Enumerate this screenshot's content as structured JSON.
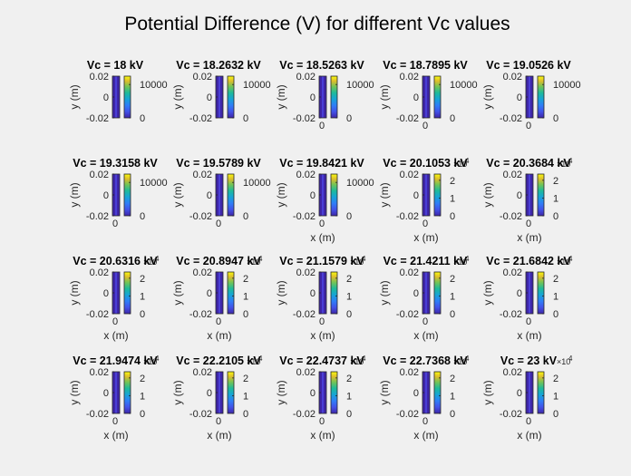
{
  "figure": {
    "title": "Potential Difference (V) for different Vc values",
    "background": "#f0f0f0",
    "axes_color": "#262626",
    "colormap": "parula"
  },
  "chart_data": {
    "type": "heatmap",
    "title": "Potential Difference (V) for different Vc values",
    "layout": "4 rows x 5 columns",
    "subplot_title_prefix": "Vc = ",
    "subplot_title_suffix": " kV",
    "vc_values": [
      "18",
      "18.2632",
      "18.5263",
      "18.7895",
      "19.0526",
      "19.3158",
      "19.5789",
      "19.8421",
      "20.1053",
      "20.3684",
      "20.6316",
      "20.8947",
      "21.1579",
      "21.4211",
      "21.6842",
      "21.9474",
      "22.2105",
      "22.4737",
      "22.7368",
      "23"
    ],
    "ylabel": "y (m)",
    "xlabel": "x (m)",
    "ytick_labels": [
      "0.02",
      "0",
      "-0.02"
    ],
    "ylim": [
      -0.02,
      0.02
    ],
    "xtick_label": "0",
    "colorbar_ticks_small": [
      "10000",
      "0"
    ],
    "colorbar_ticks_large": [
      "2",
      "1",
      "0"
    ],
    "colorbar_exponent": "4",
    "colorbar_scale": [
      10000,
      10000,
      10000,
      10000,
      10000,
      10000,
      10000,
      10000,
      20000,
      20000,
      20000,
      20000,
      20000,
      20000,
      20000,
      20000,
      20000,
      20000,
      20000,
      20000
    ],
    "xlabel_shown": [
      false,
      false,
      false,
      false,
      false,
      false,
      false,
      true,
      true,
      true,
      true,
      true,
      true,
      true,
      true,
      true,
      true,
      true,
      true,
      true
    ],
    "xtick_shown": [
      false,
      false,
      true,
      true,
      true,
      true,
      true,
      true,
      true,
      true,
      true,
      true,
      true,
      true,
      true,
      true,
      true,
      true,
      true,
      true
    ]
  }
}
